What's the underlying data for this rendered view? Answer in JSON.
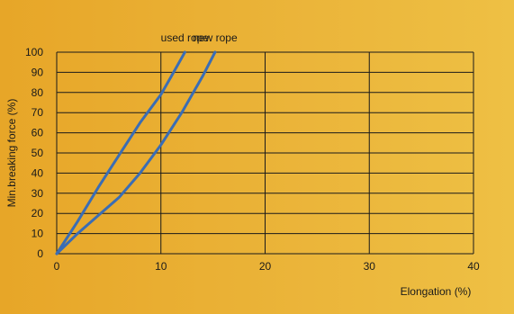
{
  "chart_data": {
    "type": "line",
    "xlabel": "Elongation (%)",
    "ylabel": "Min.breaking force (%)",
    "xlim": [
      0,
      40
    ],
    "ylim": [
      0,
      100
    ],
    "x_ticks": [
      0,
      10,
      20,
      30,
      40
    ],
    "y_ticks": [
      0,
      10,
      20,
      30,
      40,
      50,
      60,
      70,
      80,
      90,
      100
    ],
    "grid": true,
    "line_color": "#3a6db5",
    "grid_color": "#1a1a1a",
    "series": [
      {
        "name": "used rope",
        "x": [
          0,
          2,
          4,
          6,
          8,
          10,
          11,
          12.3
        ],
        "y": [
          0,
          16,
          33,
          49,
          65,
          79,
          88,
          100
        ]
      },
      {
        "name": "new rope",
        "x": [
          0,
          2,
          4,
          6,
          8,
          10,
          12,
          14,
          15.2
        ],
        "y": [
          0,
          10,
          19,
          28,
          40,
          54,
          70,
          88,
          100
        ]
      }
    ]
  }
}
